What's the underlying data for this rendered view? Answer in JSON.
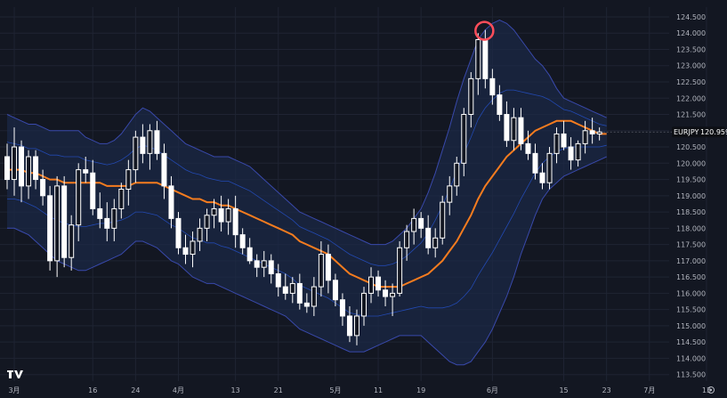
{
  "chart_data": {
    "type": "candlestick",
    "title": "",
    "symbol": "EURJPY",
    "last_price": "120.959",
    "ylim": [
      113.3,
      124.8
    ],
    "y_ticks": [
      "113.500",
      "114.000",
      "114.500",
      "115.000",
      "115.500",
      "116.000",
      "116.500",
      "117.000",
      "117.500",
      "118.000",
      "118.500",
      "119.000",
      "119.500",
      "120.000",
      "120.500",
      "121.000",
      "121.500",
      "122.000",
      "122.500",
      "123.000",
      "123.500",
      "124.000",
      "124.500"
    ],
    "x_ticks": [
      {
        "label": "3月",
        "index": 1
      },
      {
        "label": "16",
        "index": 12
      },
      {
        "label": "24",
        "index": 18
      },
      {
        "label": "4月",
        "index": 24
      },
      {
        "label": "13",
        "index": 32
      },
      {
        "label": "21",
        "index": 38
      },
      {
        "label": "5月",
        "index": 46
      },
      {
        "label": "11",
        "index": 52
      },
      {
        "label": "19",
        "index": 58
      },
      {
        "label": "6月",
        "index": 68
      },
      {
        "label": "15",
        "index": 78
      },
      {
        "label": "23",
        "index": 84
      },
      {
        "label": "7月",
        "index": 90
      },
      {
        "label": "13",
        "index": 98
      }
    ],
    "series": [
      {
        "name": "EURJPY",
        "ohlc": [
          [
            120.2,
            120.6,
            119.2,
            119.5
          ],
          [
            119.5,
            121.1,
            119.0,
            120.5
          ],
          [
            120.5,
            120.7,
            118.8,
            119.3
          ],
          [
            119.3,
            120.4,
            118.9,
            120.2
          ],
          [
            120.2,
            120.4,
            119.2,
            119.5
          ],
          [
            119.5,
            119.8,
            118.7,
            119.0
          ],
          [
            119.0,
            119.3,
            116.7,
            117.0
          ],
          [
            117.0,
            119.6,
            116.5,
            119.3
          ],
          [
            119.3,
            119.6,
            116.8,
            117.1
          ],
          [
            117.1,
            118.4,
            116.7,
            118.1
          ],
          [
            118.1,
            120.0,
            117.6,
            119.8
          ],
          [
            119.8,
            120.2,
            119.4,
            119.7
          ],
          [
            119.7,
            120.1,
            118.4,
            118.6
          ],
          [
            118.6,
            119.1,
            118.0,
            118.3
          ],
          [
            118.3,
            118.8,
            117.6,
            118.0
          ],
          [
            118.0,
            118.9,
            117.6,
            118.6
          ],
          [
            118.6,
            119.4,
            118.3,
            119.2
          ],
          [
            119.2,
            120.1,
            118.7,
            119.8
          ],
          [
            119.8,
            121.0,
            119.4,
            120.8
          ],
          [
            120.8,
            121.2,
            120.0,
            120.3
          ],
          [
            120.3,
            121.2,
            119.8,
            121.0
          ],
          [
            121.0,
            121.3,
            120.1,
            120.3
          ],
          [
            120.3,
            120.6,
            118.9,
            119.3
          ],
          [
            119.3,
            119.6,
            118.0,
            118.3
          ],
          [
            118.3,
            118.5,
            117.2,
            117.4
          ],
          [
            117.4,
            117.8,
            116.9,
            117.2
          ],
          [
            117.2,
            117.9,
            116.8,
            117.6
          ],
          [
            117.6,
            118.3,
            117.3,
            118.0
          ],
          [
            118.0,
            118.6,
            117.6,
            118.4
          ],
          [
            118.4,
            118.9,
            118.0,
            118.6
          ],
          [
            118.6,
            119.0,
            117.9,
            118.2
          ],
          [
            118.2,
            118.9,
            117.8,
            118.6
          ],
          [
            118.6,
            119.0,
            117.4,
            117.8
          ],
          [
            117.8,
            118.0,
            117.2,
            117.4
          ],
          [
            117.4,
            117.7,
            116.9,
            117.0
          ],
          [
            117.0,
            117.2,
            116.5,
            116.8
          ],
          [
            116.8,
            117.3,
            116.5,
            117.0
          ],
          [
            117.0,
            117.2,
            116.3,
            116.6
          ],
          [
            116.6,
            116.9,
            115.9,
            116.2
          ],
          [
            116.2,
            116.6,
            115.8,
            116.0
          ],
          [
            116.0,
            116.5,
            115.7,
            116.3
          ],
          [
            116.3,
            116.6,
            115.5,
            115.7
          ],
          [
            115.7,
            116.0,
            115.4,
            115.6
          ],
          [
            115.6,
            116.5,
            115.3,
            116.2
          ],
          [
            116.2,
            117.6,
            115.9,
            117.2
          ],
          [
            117.2,
            117.5,
            116.0,
            116.4
          ],
          [
            116.4,
            116.6,
            115.6,
            115.8
          ],
          [
            115.8,
            116.0,
            115.0,
            115.3
          ],
          [
            115.3,
            115.6,
            114.5,
            114.7
          ],
          [
            114.7,
            115.5,
            114.4,
            115.3
          ],
          [
            115.3,
            116.2,
            115.0,
            116.0
          ],
          [
            116.0,
            116.8,
            115.7,
            116.5
          ],
          [
            116.5,
            116.7,
            115.9,
            116.1
          ],
          [
            116.1,
            116.4,
            115.6,
            115.9
          ],
          [
            115.9,
            116.3,
            115.3,
            116.0
          ],
          [
            116.0,
            117.6,
            115.9,
            117.4
          ],
          [
            117.4,
            118.1,
            117.0,
            117.9
          ],
          [
            117.9,
            118.6,
            117.5,
            118.3
          ],
          [
            118.3,
            118.5,
            117.7,
            118.0
          ],
          [
            118.0,
            118.4,
            117.2,
            117.4
          ],
          [
            117.4,
            118.0,
            117.1,
            117.7
          ],
          [
            117.7,
            119.0,
            117.5,
            118.8
          ],
          [
            118.8,
            119.6,
            118.4,
            119.3
          ],
          [
            119.3,
            120.2,
            119.0,
            120.0
          ],
          [
            120.0,
            121.7,
            119.6,
            121.5
          ],
          [
            121.5,
            122.8,
            121.1,
            122.6
          ],
          [
            122.6,
            124.0,
            122.1,
            123.8
          ],
          [
            123.8,
            124.1,
            122.3,
            122.6
          ],
          [
            122.6,
            122.9,
            121.8,
            122.1
          ],
          [
            122.1,
            122.4,
            121.3,
            121.5
          ],
          [
            121.5,
            121.9,
            120.5,
            120.7
          ],
          [
            120.7,
            121.7,
            120.4,
            121.4
          ],
          [
            121.4,
            121.7,
            120.4,
            120.6
          ],
          [
            120.6,
            121.0,
            120.1,
            120.3
          ],
          [
            120.3,
            120.6,
            119.5,
            119.7
          ],
          [
            119.7,
            120.0,
            119.2,
            119.4
          ],
          [
            119.4,
            120.5,
            119.2,
            120.3
          ],
          [
            120.3,
            121.1,
            120.0,
            120.9
          ],
          [
            120.9,
            121.3,
            120.4,
            120.5
          ],
          [
            120.5,
            120.8,
            119.8,
            120.1
          ],
          [
            120.1,
            120.7,
            119.9,
            120.6
          ],
          [
            120.6,
            121.3,
            120.3,
            121.0
          ],
          [
            121.0,
            121.4,
            120.6,
            120.9
          ],
          [
            120.9,
            121.1,
            120.7,
            120.96
          ]
        ],
        "basis": [
          119.8,
          119.8,
          119.8,
          119.7,
          119.7,
          119.6,
          119.5,
          119.5,
          119.4,
          119.4,
          119.4,
          119.4,
          119.4,
          119.4,
          119.3,
          119.3,
          119.3,
          119.3,
          119.4,
          119.4,
          119.4,
          119.4,
          119.3,
          119.2,
          119.1,
          119.0,
          118.9,
          118.9,
          118.8,
          118.8,
          118.7,
          118.7,
          118.6,
          118.5,
          118.4,
          118.3,
          118.2,
          118.1,
          118.0,
          117.9,
          117.8,
          117.6,
          117.5,
          117.4,
          117.3,
          117.2,
          117.0,
          116.8,
          116.6,
          116.5,
          116.4,
          116.3,
          116.2,
          116.2,
          116.2,
          116.2,
          116.3,
          116.4,
          116.5,
          116.6,
          116.8,
          117.0,
          117.3,
          117.6,
          118.0,
          118.4,
          118.9,
          119.3,
          119.6,
          119.9,
          120.2,
          120.4,
          120.6,
          120.8,
          121.0,
          121.1,
          121.2,
          121.3,
          121.3,
          121.3,
          121.2,
          121.1,
          121.0,
          120.9,
          120.9
        ],
        "upper": [
          121.5,
          121.4,
          121.3,
          121.2,
          121.2,
          121.1,
          121.0,
          121.0,
          121.0,
          121.0,
          121.0,
          120.8,
          120.7,
          120.6,
          120.6,
          120.7,
          120.9,
          121.2,
          121.5,
          121.7,
          121.6,
          121.4,
          121.2,
          121.0,
          120.8,
          120.6,
          120.5,
          120.4,
          120.3,
          120.2,
          120.2,
          120.2,
          120.1,
          120.0,
          119.9,
          119.7,
          119.5,
          119.3,
          119.1,
          118.9,
          118.7,
          118.5,
          118.4,
          118.3,
          118.2,
          118.1,
          118.0,
          117.9,
          117.8,
          117.7,
          117.6,
          117.5,
          117.5,
          117.5,
          117.6,
          117.8,
          118.0,
          118.3,
          118.6,
          119.1,
          119.7,
          120.4,
          121.1,
          121.9,
          122.6,
          123.2,
          123.8,
          124.1,
          124.3,
          124.4,
          124.3,
          124.1,
          123.8,
          123.5,
          123.2,
          123.0,
          122.7,
          122.3,
          122.0,
          121.9,
          121.8,
          121.7,
          121.6,
          121.5,
          121.4
        ],
        "lower": [
          118.0,
          118.0,
          117.9,
          117.8,
          117.6,
          117.4,
          117.2,
          117.0,
          116.9,
          116.8,
          116.7,
          116.7,
          116.8,
          116.9,
          117.0,
          117.1,
          117.2,
          117.4,
          117.6,
          117.6,
          117.5,
          117.4,
          117.2,
          117.0,
          116.9,
          116.7,
          116.5,
          116.4,
          116.3,
          116.3,
          116.2,
          116.1,
          116.0,
          115.9,
          115.8,
          115.7,
          115.6,
          115.5,
          115.4,
          115.3,
          115.1,
          114.9,
          114.8,
          114.7,
          114.6,
          114.5,
          114.4,
          114.3,
          114.2,
          114.2,
          114.2,
          114.3,
          114.4,
          114.5,
          114.6,
          114.7,
          114.7,
          114.7,
          114.7,
          114.5,
          114.3,
          114.1,
          113.9,
          113.8,
          113.8,
          113.9,
          114.2,
          114.5,
          114.9,
          115.4,
          115.9,
          116.5,
          117.2,
          117.8,
          118.4,
          118.9,
          119.2,
          119.4,
          119.6,
          119.7,
          119.8,
          119.9,
          120.0,
          120.1,
          120.2
        ]
      }
    ],
    "colors": {
      "background": "#131722",
      "candle": "#ffffff",
      "wick": "#ffffff",
      "basis": "#f57c1f",
      "band": "#2962ff",
      "band_fill": "#1b2a47",
      "outer_band": "#3949ab",
      "marker": "#ff4d5a",
      "axis_text": "#b2b5be",
      "last_label_bg": "#0d0f14"
    },
    "legend": "none",
    "grid": true
  }
}
